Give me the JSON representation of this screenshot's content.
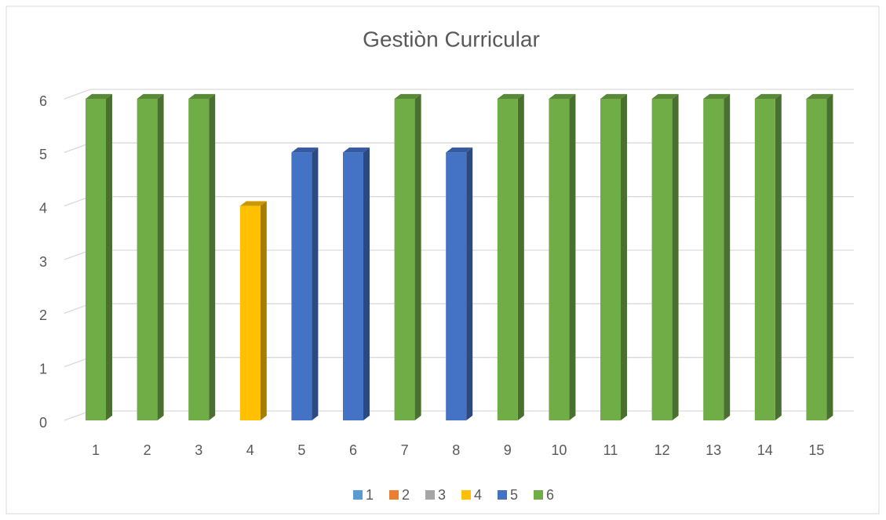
{
  "chart_data": {
    "type": "bar",
    "title": "Gestiòn Curricular",
    "categories": [
      "1",
      "2",
      "3",
      "4",
      "5",
      "6",
      "7",
      "8",
      "9",
      "10",
      "11",
      "12",
      "13",
      "14",
      "15"
    ],
    "series": [
      {
        "name": "1",
        "color": "#5b9bd5",
        "values": [
          null,
          null,
          null,
          null,
          null,
          null,
          null,
          null,
          null,
          null,
          null,
          null,
          null,
          null,
          null
        ]
      },
      {
        "name": "2",
        "color": "#ed7d31",
        "values": [
          null,
          null,
          null,
          null,
          null,
          null,
          null,
          null,
          null,
          null,
          null,
          null,
          null,
          null,
          null
        ]
      },
      {
        "name": "3",
        "color": "#a5a5a5",
        "values": [
          null,
          null,
          null,
          null,
          null,
          null,
          null,
          null,
          null,
          null,
          null,
          null,
          null,
          null,
          null
        ]
      },
      {
        "name": "4",
        "color": "#ffc000",
        "values": [
          null,
          null,
          null,
          4,
          null,
          null,
          null,
          null,
          null,
          null,
          null,
          null,
          null,
          null,
          null
        ]
      },
      {
        "name": "5",
        "color": "#4472c4",
        "values": [
          null,
          null,
          null,
          null,
          5,
          5,
          null,
          5,
          null,
          null,
          null,
          null,
          null,
          null,
          null
        ]
      },
      {
        "name": "6",
        "color": "#70ad47",
        "values": [
          6,
          6,
          6,
          null,
          null,
          null,
          6,
          null,
          6,
          6,
          6,
          6,
          6,
          6,
          6
        ]
      }
    ],
    "ylim": [
      0,
      6
    ],
    "yticks": [
      0,
      1,
      2,
      3,
      4,
      5,
      6
    ],
    "grid": true,
    "legend": "bottom"
  }
}
